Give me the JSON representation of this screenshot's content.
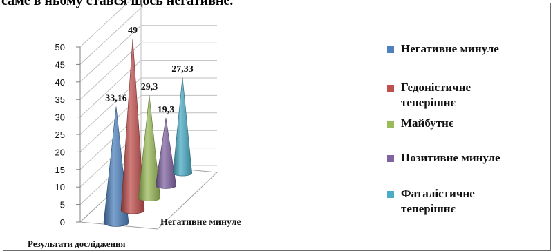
{
  "page": {
    "top_text": "саме в ньому стався щось негативне."
  },
  "chart_data": {
    "type": "bar",
    "style": "3d-cone",
    "categories": [
      "Негативне минуле"
    ],
    "series": [
      {
        "name": "Негативне минуле",
        "values": [
          33.16
        ],
        "label": "33,16",
        "color": "#4f81bd"
      },
      {
        "name": "Гедоністичне теперішнє",
        "values": [
          49
        ],
        "label": "49",
        "color": "#c0504d"
      },
      {
        "name": "Майбутнє",
        "values": [
          29.3
        ],
        "label": "29,3",
        "color": "#9bbb59"
      },
      {
        "name": "Позитивне минуле",
        "values": [
          19.3
        ],
        "label": "19,3",
        "color": "#8064a2"
      },
      {
        "name": "Фаталістичне теперішнє",
        "values": [
          27.33
        ],
        "label": "27,33",
        "color": "#4bacc6"
      }
    ],
    "y_ticks": [
      "0",
      "5",
      "10",
      "15",
      "20",
      "25",
      "30",
      "35",
      "40",
      "45",
      "50"
    ],
    "ylim": [
      0,
      50
    ],
    "xlabel": "Результати дослідження",
    "category_label": "Негативне минуле",
    "legend": {
      "position": "right",
      "items": [
        {
          "lines": [
            "Негативне минуле"
          ],
          "color": "#4f81bd"
        },
        {
          "lines": [
            "Гедоністичне",
            "теперішнє"
          ],
          "color": "#c0504d"
        },
        {
          "lines": [
            "Майбутнє"
          ],
          "color": "#9bbb59"
        },
        {
          "lines": [
            "Позитивне минуле"
          ],
          "color": "#8064a2"
        },
        {
          "lines": [
            "Фаталістичне",
            "теперішнє"
          ],
          "color": "#4bacc6"
        }
      ]
    },
    "grid": true
  }
}
